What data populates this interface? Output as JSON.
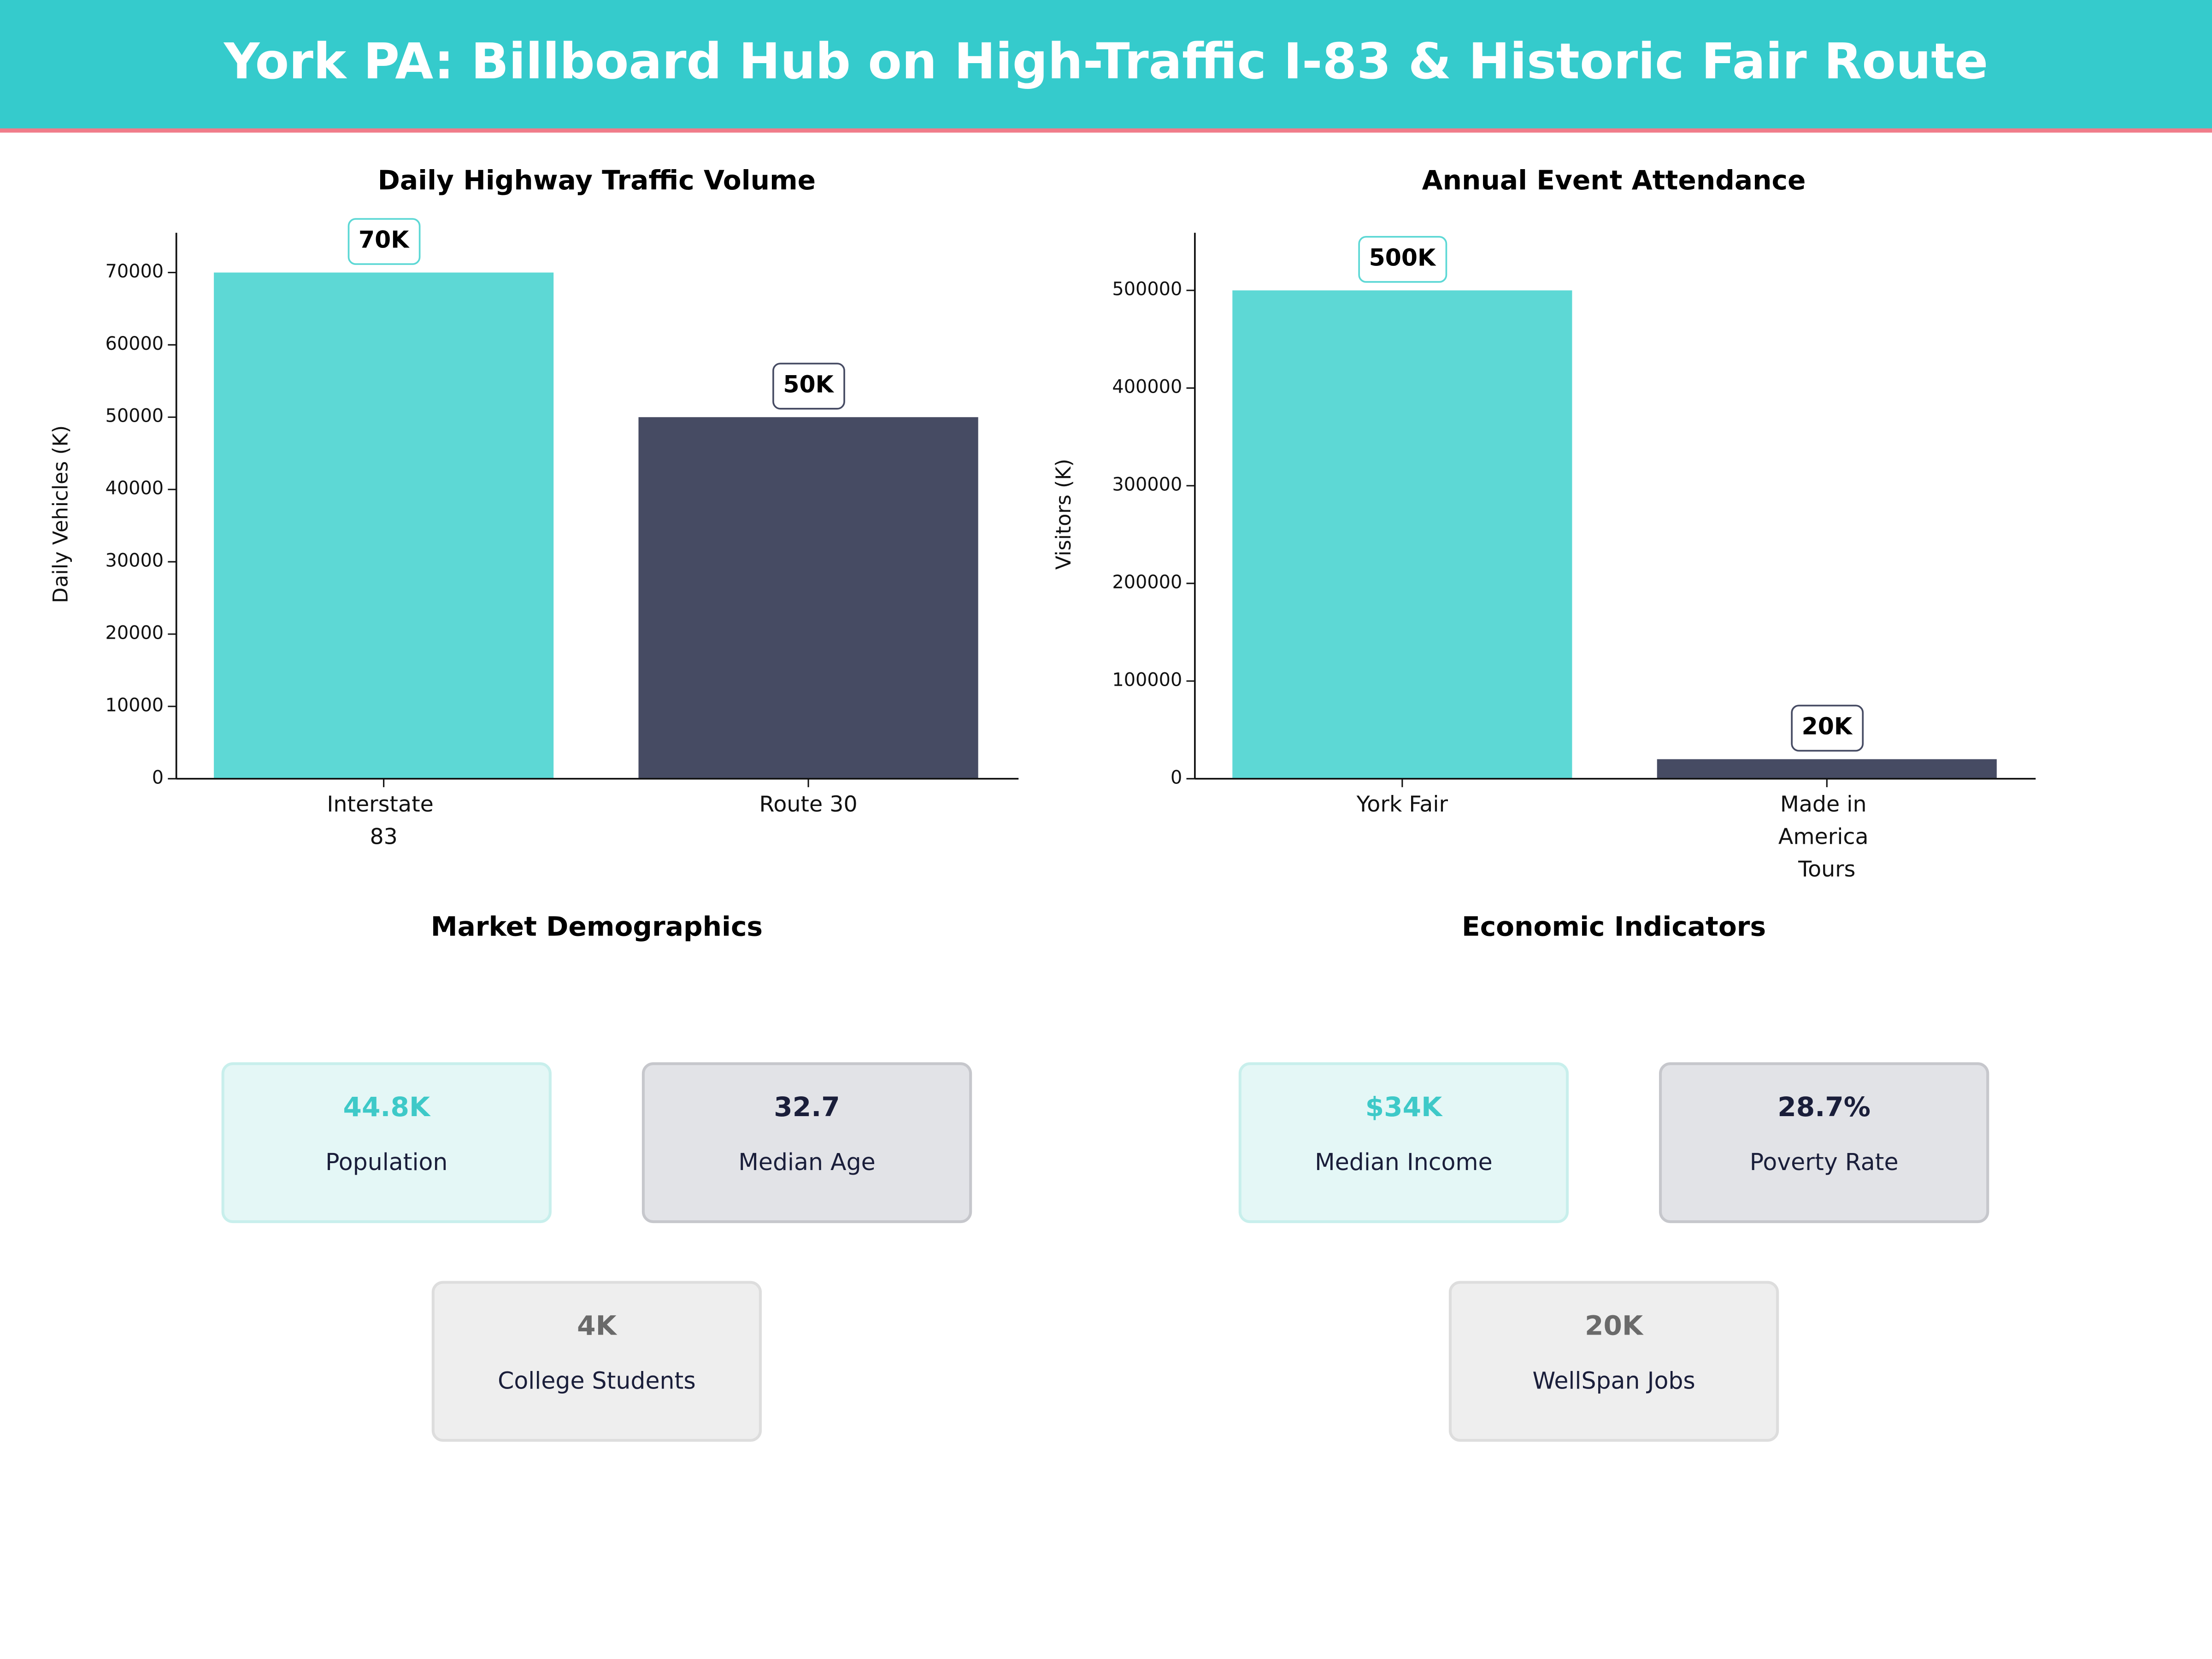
{
  "title": "York PA: Billboard Hub on High-Traffic I-83 & Historic Fair Route",
  "chart_data": [
    {
      "type": "bar",
      "title": "Daily Highway Traffic Volume",
      "ylabel": "Daily Vehicles (K)",
      "categories": [
        "Interstate 83",
        "Route 30"
      ],
      "values": [
        70000,
        50000
      ],
      "value_labels": [
        "70K",
        "50K"
      ],
      "colors": [
        "#5dd8d5",
        "#464b63"
      ],
      "ylim": [
        0,
        75500
      ],
      "yticks": [
        0,
        10000,
        20000,
        30000,
        40000,
        50000,
        60000,
        70000
      ]
    },
    {
      "type": "bar",
      "title": "Annual Event Attendance",
      "ylabel": "Visitors (K)",
      "categories": [
        "York Fair",
        "Made in America Tours"
      ],
      "values": [
        500000,
        20000
      ],
      "value_labels": [
        "500K",
        "20K"
      ],
      "colors": [
        "#5dd8d5",
        "#464b63"
      ],
      "ylim": [
        0,
        559000
      ],
      "yticks": [
        0,
        100000,
        200000,
        300000,
        400000,
        500000
      ]
    }
  ],
  "panels": [
    {
      "title": "Market Demographics",
      "cards": [
        {
          "value": "44.8K",
          "label": "Population"
        },
        {
          "value": "32.7",
          "label": "Median Age"
        },
        {
          "value": "4K",
          "label": "College Students"
        }
      ]
    },
    {
      "title": "Economic Indicators",
      "cards": [
        {
          "value": "$34K",
          "label": "Median Income"
        },
        {
          "value": "28.7%",
          "label": "Poverty Rate"
        },
        {
          "value": "20K",
          "label": "WellSpan Jobs"
        }
      ]
    }
  ]
}
